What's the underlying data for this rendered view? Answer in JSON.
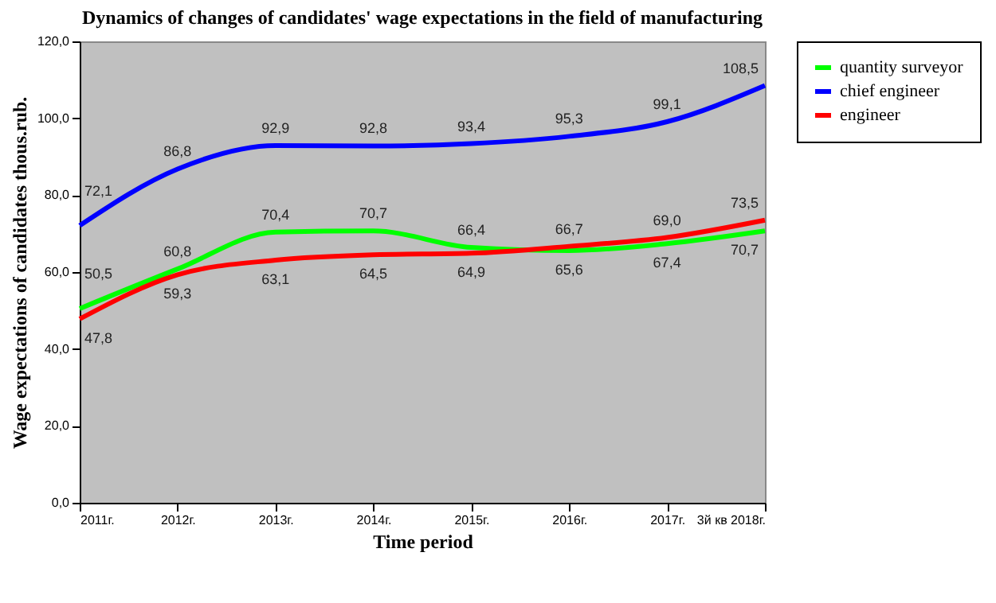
{
  "chart_data": {
    "type": "line",
    "title": "Dynamics of changes of candidates' wage expectations in the field of  manufacturing",
    "xlabel": "Time period",
    "ylabel": "Wage expectations of candidates thous.rub.",
    "categories": [
      "2011г.",
      "2012г.",
      "2013г.",
      "2014г.",
      "2015г.",
      "2016г.",
      "2017г.",
      "3й кв 2018г."
    ],
    "series": [
      {
        "name": "quantity surveyor",
        "color": "#00ff00",
        "values": [
          50.5,
          60.8,
          70.4,
          70.7,
          66.4,
          65.6,
          67.4,
          70.7
        ],
        "value_labels": [
          "50,5",
          "60,8",
          "70,4",
          "70,7",
          "66,4",
          "65,6",
          "67,4",
          "70,7"
        ]
      },
      {
        "name": "chief engineer",
        "color": "#0000ff",
        "values": [
          72.1,
          86.8,
          92.9,
          92.8,
          93.4,
          95.3,
          99.1,
          108.5
        ],
        "value_labels": [
          "72,1",
          "86,8",
          "92,9",
          "92,8",
          "93,4",
          "95,3",
          "99,1",
          "108,5"
        ]
      },
      {
        "name": "engineer",
        "color": "#ff0000",
        "values": [
          47.8,
          59.3,
          63.1,
          64.5,
          64.9,
          66.7,
          69.0,
          73.5
        ],
        "value_labels": [
          "47,8",
          "59,3",
          "63,1",
          "64,5",
          "64,9",
          "66,7",
          "69,0",
          "73,5"
        ]
      }
    ],
    "ylim": [
      0,
      120
    ],
    "yticks": [
      {
        "value": 0,
        "label": "0,0"
      },
      {
        "value": 20,
        "label": "20,0"
      },
      {
        "value": 40,
        "label": "40,0"
      },
      {
        "value": 60,
        "label": "60,0"
      },
      {
        "value": 80,
        "label": "80,0"
      },
      {
        "value": 100,
        "label": "100,0"
      },
      {
        "value": 120,
        "label": "120,0"
      }
    ],
    "grid": false,
    "legend": "right",
    "marker": "none",
    "line_style": "solid"
  }
}
